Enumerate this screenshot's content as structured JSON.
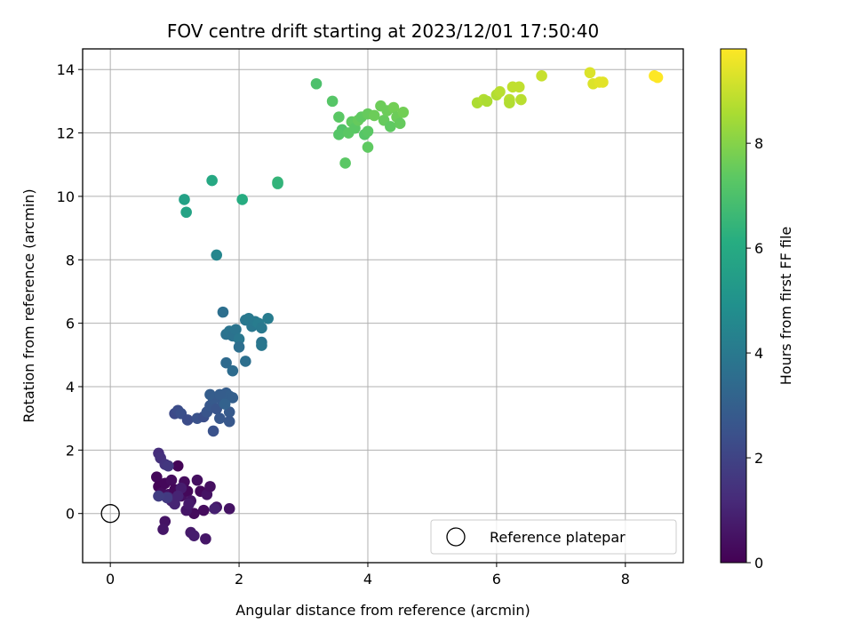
{
  "chart_data": {
    "type": "scatter",
    "title": "FOV centre drift starting at 2023/12/01 17:50:40",
    "xlabel": "Angular distance from reference (arcmin)",
    "ylabel": "Rotation from reference (arcmin)",
    "xlim": [
      -0.43,
      8.9
    ],
    "ylim": [
      -1.55,
      14.65
    ],
    "xticks": [
      0,
      2,
      4,
      6,
      8
    ],
    "yticks": [
      0,
      2,
      4,
      6,
      8,
      10,
      12,
      14
    ],
    "grid": true,
    "legend": {
      "position": "lower-right",
      "entries": [
        {
          "name": "Reference platepar",
          "marker": "hollow-circle"
        }
      ]
    },
    "reference": {
      "x": 0,
      "y": 0
    },
    "colorbar": {
      "label": "Hours from first FF file",
      "colormap": "viridis",
      "range": [
        0,
        9.8
      ],
      "ticks": [
        0,
        2,
        4,
        6,
        8
      ]
    },
    "points": [
      {
        "x": 0.72,
        "y": 1.15,
        "t": 0.2
      },
      {
        "x": 0.75,
        "y": 0.85,
        "t": 0.1
      },
      {
        "x": 0.8,
        "y": 0.65,
        "t": 0.3
      },
      {
        "x": 0.85,
        "y": 0.95,
        "t": 0.2
      },
      {
        "x": 0.9,
        "y": 0.6,
        "t": 0.4
      },
      {
        "x": 0.95,
        "y": 1.05,
        "t": 0.3
      },
      {
        "x": 1.0,
        "y": 0.75,
        "t": 0.2
      },
      {
        "x": 1.05,
        "y": 1.5,
        "t": 0.1
      },
      {
        "x": 1.1,
        "y": 0.55,
        "t": 0.4
      },
      {
        "x": 1.15,
        "y": 1.0,
        "t": 0.3
      },
      {
        "x": 1.2,
        "y": 0.7,
        "t": 0.2
      },
      {
        "x": 1.25,
        "y": 0.4,
        "t": 0.5
      },
      {
        "x": 1.3,
        "y": 0.0,
        "t": 0.3
      },
      {
        "x": 1.35,
        "y": 1.05,
        "t": 0.4
      },
      {
        "x": 1.4,
        "y": 0.7,
        "t": 0.2
      },
      {
        "x": 1.45,
        "y": 0.1,
        "t": 0.3
      },
      {
        "x": 1.5,
        "y": 0.6,
        "t": 0.5
      },
      {
        "x": 1.55,
        "y": 0.85,
        "t": 0.4
      },
      {
        "x": 1.65,
        "y": 0.2,
        "t": 0.6
      },
      {
        "x": 1.85,
        "y": 0.15,
        "t": 0.5
      },
      {
        "x": 1.18,
        "y": 0.1,
        "t": 0.6
      },
      {
        "x": 1.22,
        "y": 0.3,
        "t": 0.7
      },
      {
        "x": 0.85,
        "y": -0.25,
        "t": 0.5
      },
      {
        "x": 0.82,
        "y": -0.5,
        "t": 0.6
      },
      {
        "x": 1.25,
        "y": -0.6,
        "t": 0.7
      },
      {
        "x": 1.3,
        "y": -0.7,
        "t": 0.8
      },
      {
        "x": 1.48,
        "y": -0.8,
        "t": 0.6
      },
      {
        "x": 0.95,
        "y": 0.4,
        "t": 0.9
      },
      {
        "x": 1.0,
        "y": 0.3,
        "t": 1.0
      },
      {
        "x": 0.9,
        "y": 0.5,
        "t": 1.1
      },
      {
        "x": 1.1,
        "y": 0.8,
        "t": 0.8
      },
      {
        "x": 1.62,
        "y": 0.15,
        "t": 0.9
      },
      {
        "x": 1.05,
        "y": 0.55,
        "t": 1.0
      },
      {
        "x": 0.75,
        "y": 1.9,
        "t": 1.3
      },
      {
        "x": 0.78,
        "y": 1.75,
        "t": 1.4
      },
      {
        "x": 0.85,
        "y": 1.55,
        "t": 1.5
      },
      {
        "x": 0.9,
        "y": 1.5,
        "t": 1.6
      },
      {
        "x": 0.88,
        "y": 0.5,
        "t": 1.7
      },
      {
        "x": 0.75,
        "y": 0.55,
        "t": 1.8
      },
      {
        "x": 1.0,
        "y": 3.15,
        "t": 2.2
      },
      {
        "x": 1.05,
        "y": 3.25,
        "t": 2.3
      },
      {
        "x": 1.1,
        "y": 3.15,
        "t": 2.4
      },
      {
        "x": 1.2,
        "y": 2.95,
        "t": 2.3
      },
      {
        "x": 1.35,
        "y": 3.0,
        "t": 2.5
      },
      {
        "x": 1.45,
        "y": 3.05,
        "t": 2.4
      },
      {
        "x": 1.5,
        "y": 3.2,
        "t": 2.6
      },
      {
        "x": 1.55,
        "y": 3.4,
        "t": 2.7
      },
      {
        "x": 1.6,
        "y": 3.6,
        "t": 2.8
      },
      {
        "x": 1.55,
        "y": 3.75,
        "t": 2.9
      },
      {
        "x": 1.65,
        "y": 3.3,
        "t": 2.6
      },
      {
        "x": 1.7,
        "y": 3.0,
        "t": 2.7
      },
      {
        "x": 1.75,
        "y": 3.5,
        "t": 2.8
      },
      {
        "x": 1.8,
        "y": 3.8,
        "t": 2.9
      },
      {
        "x": 1.85,
        "y": 3.7,
        "t": 3.0
      },
      {
        "x": 1.9,
        "y": 3.65,
        "t": 3.0
      },
      {
        "x": 1.85,
        "y": 3.2,
        "t": 2.8
      },
      {
        "x": 1.85,
        "y": 2.9,
        "t": 2.7
      },
      {
        "x": 1.6,
        "y": 2.6,
        "t": 2.5
      },
      {
        "x": 1.7,
        "y": 3.75,
        "t": 2.9
      },
      {
        "x": 1.78,
        "y": 3.45,
        "t": 3.1
      },
      {
        "x": 1.75,
        "y": 6.35,
        "t": 3.6
      },
      {
        "x": 1.8,
        "y": 5.65,
        "t": 3.7
      },
      {
        "x": 1.85,
        "y": 5.75,
        "t": 3.8
      },
      {
        "x": 1.9,
        "y": 5.6,
        "t": 3.7
      },
      {
        "x": 1.95,
        "y": 5.8,
        "t": 3.8
      },
      {
        "x": 2.0,
        "y": 5.5,
        "t": 3.9
      },
      {
        "x": 2.0,
        "y": 5.25,
        "t": 3.6
      },
      {
        "x": 1.8,
        "y": 4.75,
        "t": 3.4
      },
      {
        "x": 1.9,
        "y": 4.5,
        "t": 3.5
      },
      {
        "x": 2.1,
        "y": 4.8,
        "t": 3.6
      },
      {
        "x": 2.1,
        "y": 6.1,
        "t": 3.9
      },
      {
        "x": 2.15,
        "y": 6.15,
        "t": 4.0
      },
      {
        "x": 2.2,
        "y": 5.9,
        "t": 3.9
      },
      {
        "x": 2.25,
        "y": 6.05,
        "t": 4.0
      },
      {
        "x": 2.3,
        "y": 6.0,
        "t": 4.1
      },
      {
        "x": 2.35,
        "y": 5.85,
        "t": 4.0
      },
      {
        "x": 2.35,
        "y": 5.4,
        "t": 3.8
      },
      {
        "x": 2.35,
        "y": 5.3,
        "t": 3.9
      },
      {
        "x": 2.45,
        "y": 6.15,
        "t": 4.1
      },
      {
        "x": 1.65,
        "y": 8.15,
        "t": 4.5
      },
      {
        "x": 1.15,
        "y": 9.9,
        "t": 5.6
      },
      {
        "x": 1.18,
        "y": 9.5,
        "t": 5.7
      },
      {
        "x": 1.58,
        "y": 10.5,
        "t": 5.9
      },
      {
        "x": 2.05,
        "y": 9.9,
        "t": 6.1
      },
      {
        "x": 2.6,
        "y": 10.45,
        "t": 6.5
      },
      {
        "x": 2.6,
        "y": 10.4,
        "t": 6.4
      },
      {
        "x": 3.2,
        "y": 13.55,
        "t": 7.0
      },
      {
        "x": 3.45,
        "y": 13.0,
        "t": 7.2
      },
      {
        "x": 3.55,
        "y": 12.5,
        "t": 7.3
      },
      {
        "x": 3.6,
        "y": 12.1,
        "t": 7.1
      },
      {
        "x": 3.55,
        "y": 11.95,
        "t": 7.2
      },
      {
        "x": 3.7,
        "y": 12.0,
        "t": 7.3
      },
      {
        "x": 3.75,
        "y": 12.35,
        "t": 7.4
      },
      {
        "x": 3.8,
        "y": 12.15,
        "t": 7.3
      },
      {
        "x": 3.85,
        "y": 12.4,
        "t": 7.5
      },
      {
        "x": 3.9,
        "y": 12.5,
        "t": 7.4
      },
      {
        "x": 3.95,
        "y": 11.95,
        "t": 7.2
      },
      {
        "x": 4.0,
        "y": 12.05,
        "t": 7.3
      },
      {
        "x": 4.0,
        "y": 12.6,
        "t": 7.5
      },
      {
        "x": 4.1,
        "y": 12.55,
        "t": 7.6
      },
      {
        "x": 4.2,
        "y": 12.85,
        "t": 7.6
      },
      {
        "x": 4.25,
        "y": 12.4,
        "t": 7.5
      },
      {
        "x": 4.3,
        "y": 12.7,
        "t": 7.6
      },
      {
        "x": 4.35,
        "y": 12.2,
        "t": 7.4
      },
      {
        "x": 4.4,
        "y": 12.8,
        "t": 7.7
      },
      {
        "x": 4.45,
        "y": 12.5,
        "t": 7.6
      },
      {
        "x": 4.5,
        "y": 12.3,
        "t": 7.5
      },
      {
        "x": 4.55,
        "y": 12.65,
        "t": 7.7
      },
      {
        "x": 3.65,
        "y": 11.05,
        "t": 7.3
      },
      {
        "x": 4.0,
        "y": 11.55,
        "t": 7.4
      },
      {
        "x": 5.7,
        "y": 12.95,
        "t": 8.6
      },
      {
        "x": 5.8,
        "y": 13.05,
        "t": 8.7
      },
      {
        "x": 5.85,
        "y": 13.0,
        "t": 8.6
      },
      {
        "x": 6.0,
        "y": 13.2,
        "t": 8.7
      },
      {
        "x": 6.05,
        "y": 13.3,
        "t": 8.8
      },
      {
        "x": 6.2,
        "y": 13.05,
        "t": 8.8
      },
      {
        "x": 6.2,
        "y": 12.95,
        "t": 8.7
      },
      {
        "x": 6.25,
        "y": 13.45,
        "t": 8.9
      },
      {
        "x": 6.35,
        "y": 13.45,
        "t": 8.9
      },
      {
        "x": 6.38,
        "y": 13.05,
        "t": 8.8
      },
      {
        "x": 6.7,
        "y": 13.8,
        "t": 9.0
      },
      {
        "x": 7.45,
        "y": 13.9,
        "t": 9.3
      },
      {
        "x": 7.5,
        "y": 13.55,
        "t": 9.3
      },
      {
        "x": 7.6,
        "y": 13.6,
        "t": 9.4
      },
      {
        "x": 7.65,
        "y": 13.6,
        "t": 9.4
      },
      {
        "x": 8.45,
        "y": 13.8,
        "t": 9.8
      },
      {
        "x": 8.5,
        "y": 13.75,
        "t": 9.8
      }
    ]
  }
}
